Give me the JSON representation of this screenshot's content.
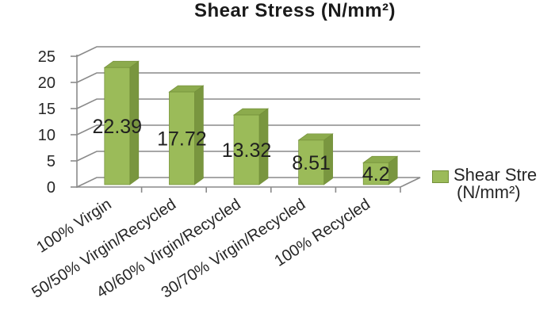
{
  "chart_data": {
    "type": "bar",
    "style": "3d-column",
    "title": "Shear Stress (N/mm²)",
    "categories": [
      "100% Virgin",
      "50/50% Virgin/Recycled",
      "40/60% Virgin/Recycled",
      "30/70% Virgin/Recycled",
      "100% Recycled"
    ],
    "series": [
      {
        "name": "Shear Stre (N/mm²)",
        "values": [
          22.39,
          17.72,
          13.32,
          8.51,
          4.2
        ]
      }
    ],
    "data_labels": [
      "22.39",
      "17.72",
      "13.32",
      "8.51",
      "4.2"
    ],
    "y_ticks": [
      0,
      5,
      10,
      15,
      20,
      25
    ],
    "ylim": [
      0,
      25
    ],
    "grid": true,
    "xlabel": "",
    "ylabel": "",
    "legend": {
      "position": "right",
      "lines": [
        "Shear Stre",
        "(N/mm²)"
      ]
    },
    "colors": {
      "bar_front": "#9BBB59",
      "bar_side": "#79963F",
      "bar_top": "#8CAB4D",
      "bar_edge": "#74903A",
      "line": "#8A8A8A",
      "text": "#262626",
      "title": "#1A1A1A",
      "background": "#FFFFFF"
    }
  }
}
